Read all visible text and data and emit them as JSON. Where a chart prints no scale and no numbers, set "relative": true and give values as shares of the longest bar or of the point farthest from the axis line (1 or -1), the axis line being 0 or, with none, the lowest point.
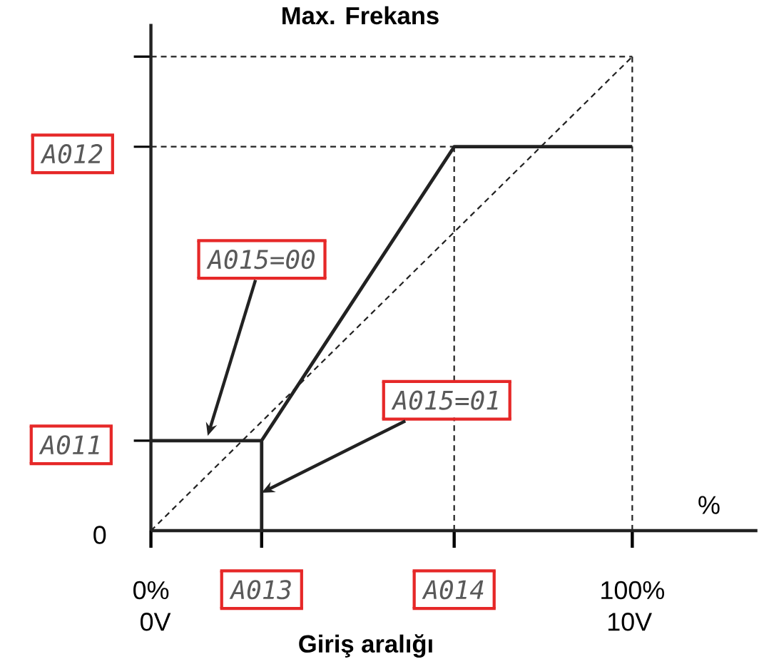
{
  "chart_data": {
    "type": "line",
    "title": "Max. Frekans",
    "xlabel": "Giriş aralığı",
    "relative": true,
    "xlim": [
      0,
      126
    ],
    "xticks": [
      {
        "value": 0,
        "label": "0%"
      },
      {
        "value": 23,
        "label": "A013"
      },
      {
        "value": 63,
        "label": "A014"
      },
      {
        "value": 100,
        "label": "100%"
      }
    ],
    "series": [
      {
        "color": "#222222",
        "line_style": "solid",
        "x": [
          0,
          23,
          23,
          23,
          63,
          100
        ],
        "values": [
          0.19,
          0.19,
          0,
          0.19,
          0.81,
          0.81
        ]
      },
      {
        "color": "#222222",
        "line_style": "dashed",
        "x": [
          0,
          100
        ],
        "values": [
          0,
          1
        ]
      },
      {
        "color": "#222222",
        "line_style": "dashed",
        "x": [
          0,
          100
        ],
        "values": [
          1,
          1
        ]
      },
      {
        "color": "#222222",
        "line_style": "dashed",
        "x": [
          100,
          100
        ],
        "values": [
          0,
          1
        ]
      },
      {
        "color": "#222222",
        "line_style": "dashed",
        "x": [
          0,
          63
        ],
        "values": [
          0.81,
          0.81
        ]
      },
      {
        "color": "#222222",
        "line_style": "dashed",
        "x": [
          63,
          63
        ],
        "values": [
          0,
          0.81
        ]
      }
    ],
    "annotations": [
      {
        "text": "A011",
        "x": 0,
        "y": 0.19
      },
      {
        "text": "A012",
        "x": 0,
        "y": 0.81
      },
      {
        "text": "A015=00",
        "x": 11.8,
        "y": 0.2
      },
      {
        "text": "A015=01",
        "x": 23,
        "y": 0.08
      },
      {
        "text": "0",
        "x": 0,
        "y": 0
      },
      "0V",
      "10V",
      "%"
    ]
  }
}
